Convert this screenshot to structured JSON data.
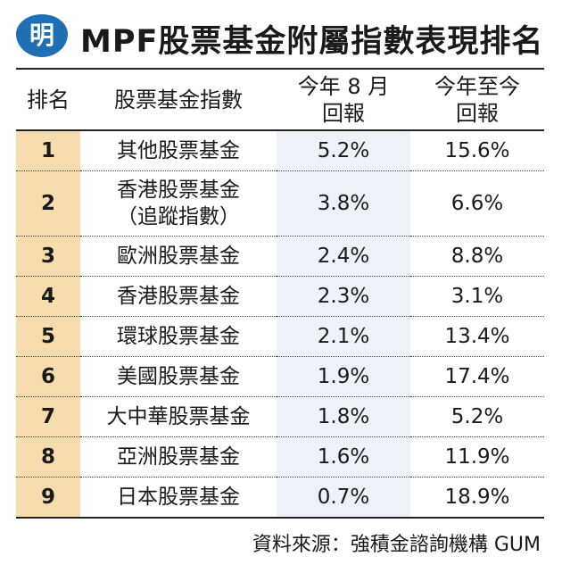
{
  "logo_text": "明",
  "title": "MPF股票基金附屬指數表現排名",
  "chart_data": {
    "type": "table",
    "title": "MPF股票基金附屬指數表現排名",
    "columns": [
      "排名",
      "股票基金指數",
      "今年８月回報",
      "今年至今回報"
    ],
    "column_lines": [
      [
        "排名"
      ],
      [
        "股票基金指數"
      ],
      [
        "今年 8 月",
        "回報"
      ],
      [
        "今年至今",
        "回報"
      ]
    ],
    "rows": [
      {
        "rank": "1",
        "name": "其他股票基金",
        "name_sub": "",
        "august_return": "5.2%",
        "ytd_return": "15.6%"
      },
      {
        "rank": "2",
        "name": "香港股票基金",
        "name_sub": "（追蹤指數）",
        "august_return": "3.8%",
        "ytd_return": "6.6%"
      },
      {
        "rank": "3",
        "name": "歐洲股票基金",
        "name_sub": "",
        "august_return": "2.4%",
        "ytd_return": "8.8%"
      },
      {
        "rank": "4",
        "name": "香港股票基金",
        "name_sub": "",
        "august_return": "2.3%",
        "ytd_return": "3.1%"
      },
      {
        "rank": "5",
        "name": "環球股票基金",
        "name_sub": "",
        "august_return": "2.1%",
        "ytd_return": "13.4%"
      },
      {
        "rank": "6",
        "name": "美國股票基金",
        "name_sub": "",
        "august_return": "1.9%",
        "ytd_return": "17.4%"
      },
      {
        "rank": "7",
        "name": "大中華股票基金",
        "name_sub": "",
        "august_return": "1.8%",
        "ytd_return": "5.2%"
      },
      {
        "rank": "8",
        "name": "亞洲股票基金",
        "name_sub": "",
        "august_return": "1.6%",
        "ytd_return": "11.9%"
      },
      {
        "rank": "9",
        "name": "日本股票基金",
        "name_sub": "",
        "august_return": "0.7%",
        "ytd_return": "18.9%"
      }
    ],
    "source": "資料來源：強積金諮詢機構 GUM"
  },
  "colors": {
    "rank_column": "#f7dcae",
    "august_column": "#edf2f9",
    "logo": "#1f6fb5"
  }
}
